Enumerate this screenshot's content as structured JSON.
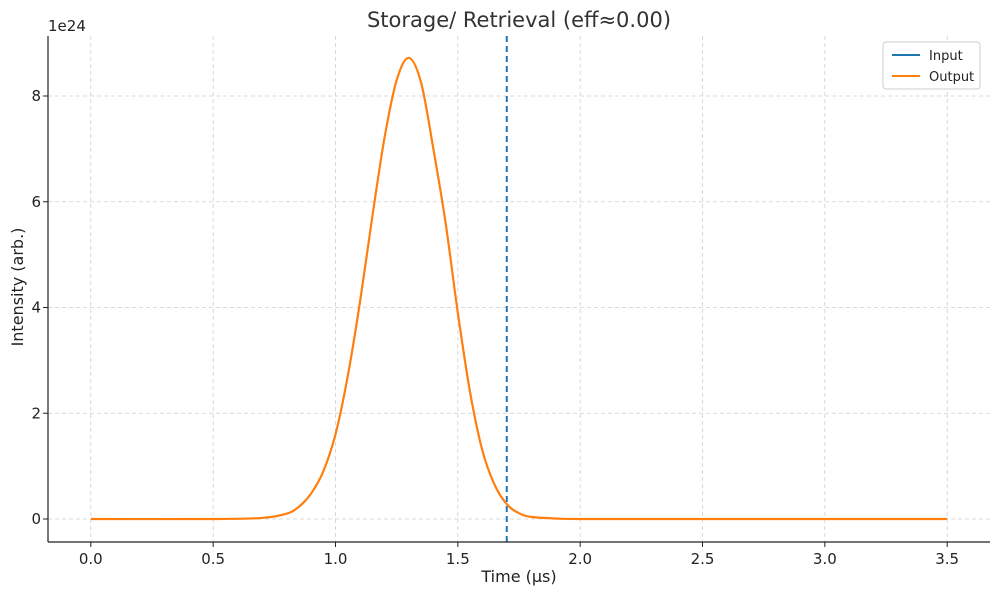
{
  "chart_data": {
    "type": "line",
    "title": "Storage/ Retrieval (eff≈0.00)",
    "xlabel": "Time (µs)",
    "ylabel": "Intensity (arb.)",
    "y_offset_text": "1e24",
    "xlim": [
      -0.175,
      3.675
    ],
    "ylim": [
      -0.435,
      9.135
    ],
    "x_ticks": [
      0.0,
      0.5,
      1.0,
      1.5,
      2.0,
      2.5,
      3.0,
      3.5
    ],
    "x_tick_labels": [
      "0.0",
      "0.5",
      "1.0",
      "1.5",
      "2.0",
      "2.5",
      "3.0",
      "3.5"
    ],
    "y_ticks": [
      0,
      2,
      4,
      6,
      8
    ],
    "y_tick_labels": [
      "0",
      "2",
      "4",
      "6",
      "8"
    ],
    "grid": true,
    "legend_position": "top-right",
    "series": [
      {
        "name": "Input",
        "color": "#1f77b4",
        "kind": "vertical-dashed",
        "x": [
          1.7,
          1.7
        ],
        "y": [
          -0.435,
          9.135
        ]
      },
      {
        "name": "Output",
        "color": "#ff7f0e",
        "x": [
          0.0,
          0.5,
          0.7,
          0.8,
          0.85,
          0.9,
          0.95,
          1.0,
          1.05,
          1.1,
          1.15,
          1.2,
          1.25,
          1.3,
          1.35,
          1.4,
          1.45,
          1.5,
          1.55,
          1.6,
          1.65,
          1.7,
          1.75,
          1.8,
          1.9,
          2.0,
          2.5,
          3.0,
          3.5
        ],
        "y": [
          0.0,
          0.0,
          0.02,
          0.1,
          0.23,
          0.48,
          0.9,
          1.6,
          2.7,
          4.1,
          5.7,
          7.2,
          8.3,
          8.72,
          8.25,
          7.0,
          5.6,
          3.9,
          2.4,
          1.3,
          0.65,
          0.28,
          0.11,
          0.04,
          0.01,
          0.0,
          0.0,
          0.0,
          0.0
        ]
      }
    ]
  }
}
